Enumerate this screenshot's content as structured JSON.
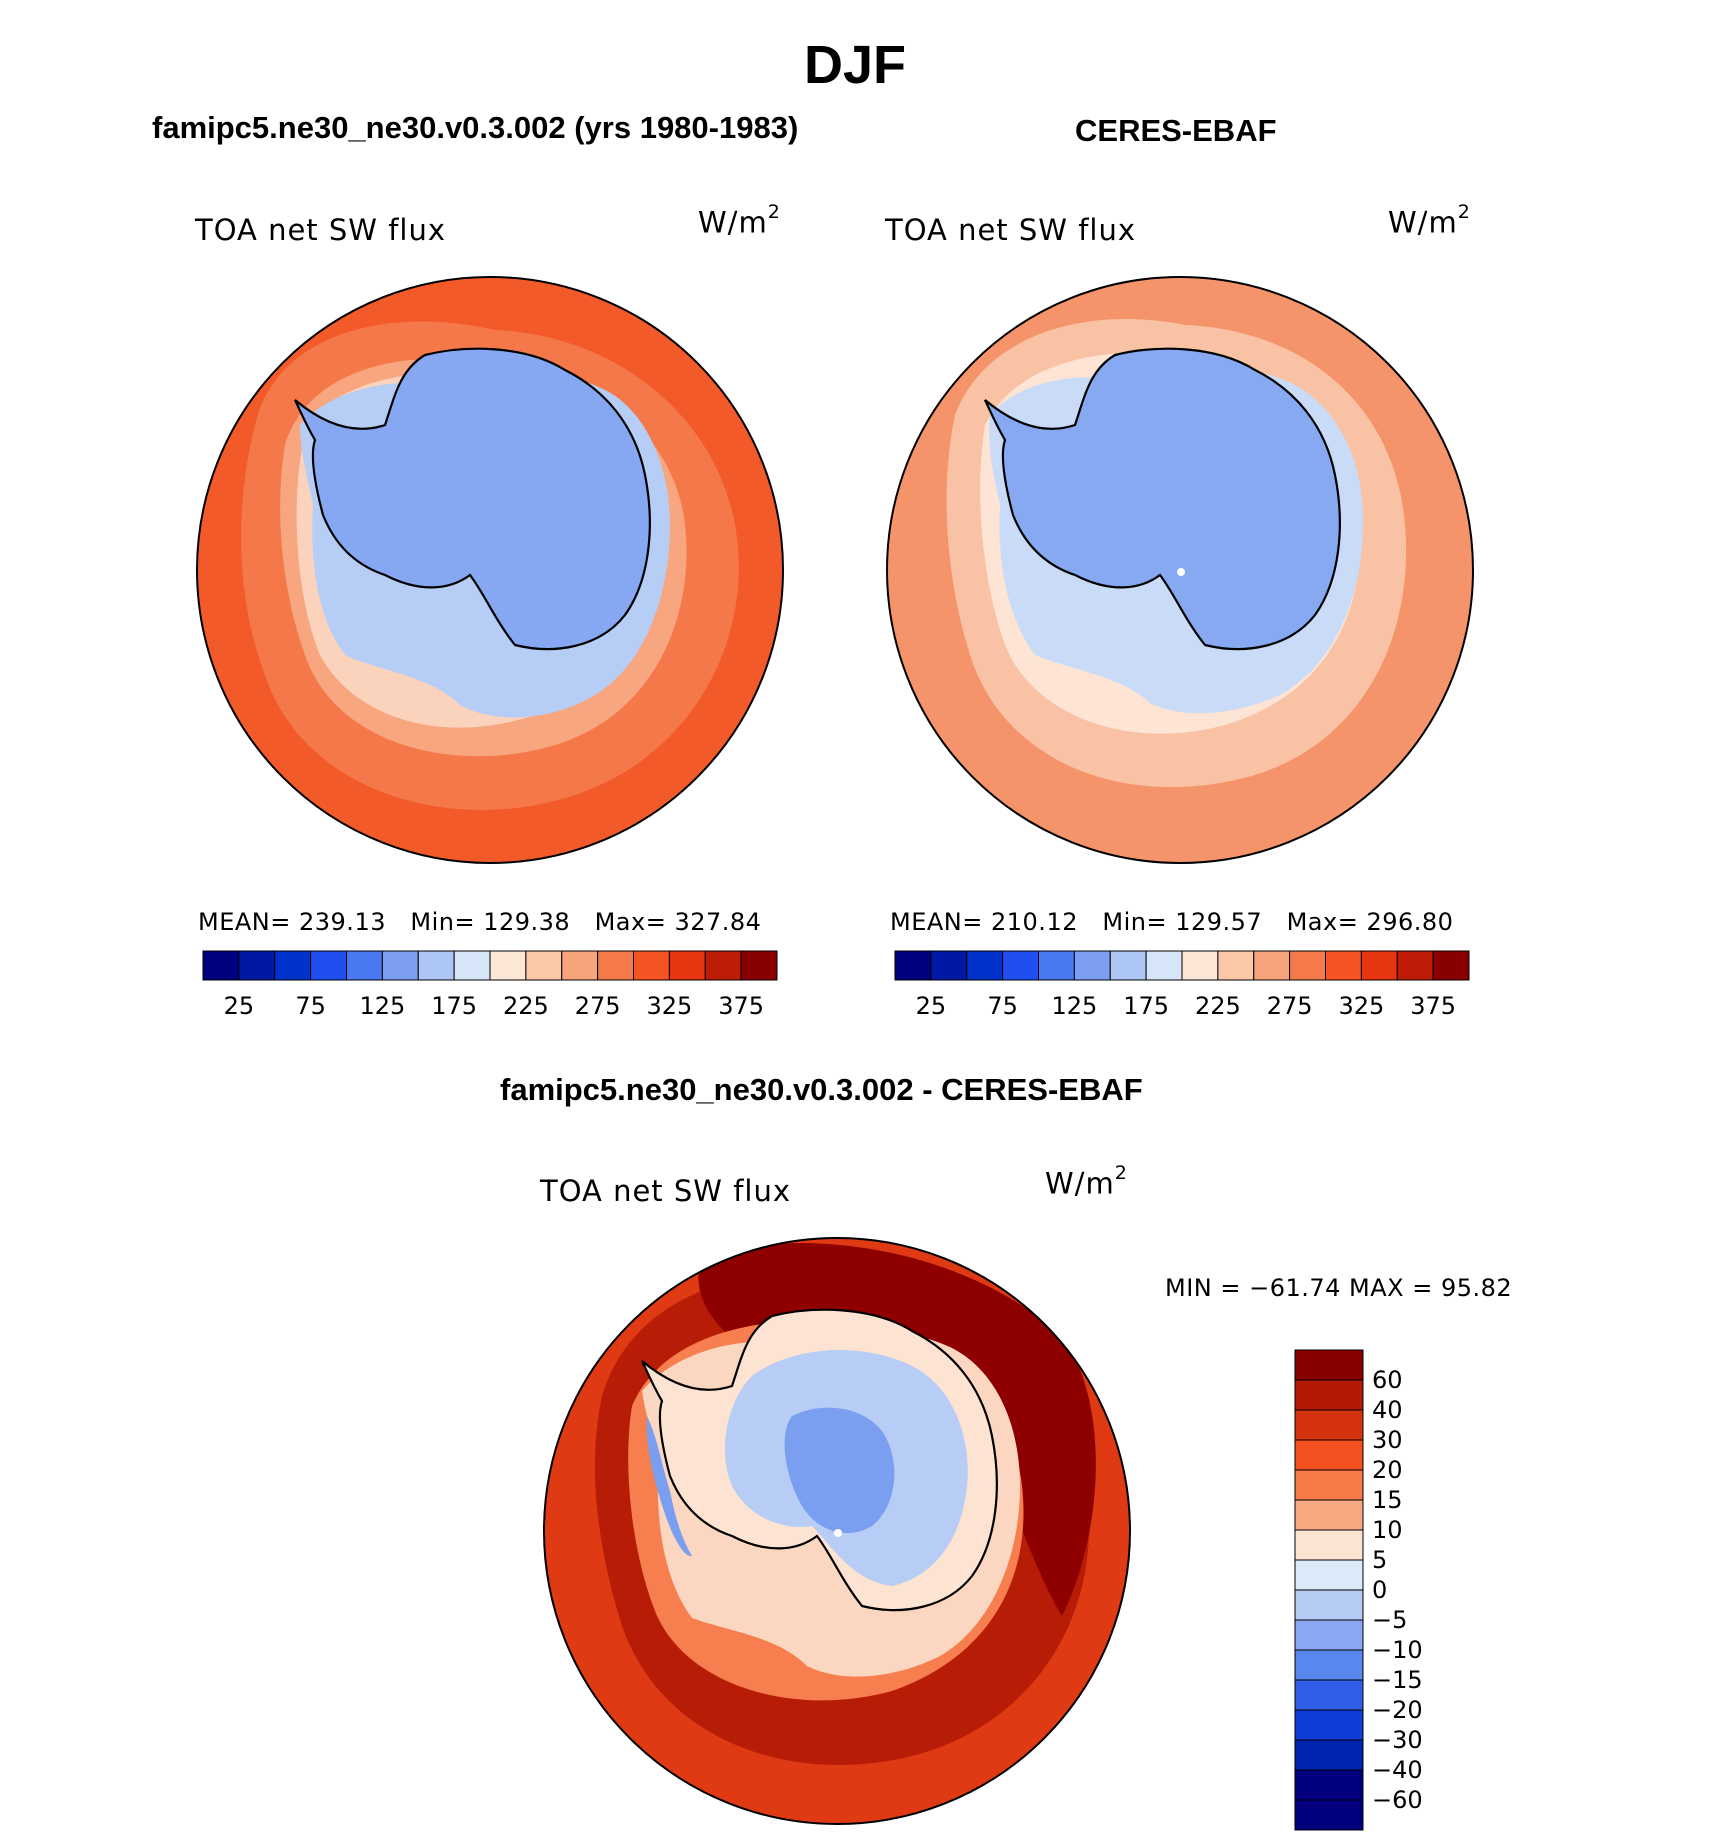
{
  "figure": {
    "title": "DJF"
  },
  "panels": [
    {
      "title": "famipc5.ne30_ne30.v0.3.002 (yrs 1980-1983)",
      "variable": "TOA net SW flux",
      "units_base": "W/m",
      "units_exp": "2",
      "stats": {
        "mean_label": "MEAN=",
        "mean": "239.13",
        "min_label": "Min=",
        "min": "129.38",
        "max_label": "Max=",
        "max": "327.84"
      }
    },
    {
      "title": "CERES-EBAF",
      "variable": "TOA net SW flux",
      "units_base": "W/m",
      "units_exp": "2",
      "stats": {
        "mean_label": "MEAN=",
        "mean": "210.12",
        "min_label": "Min=",
        "min": "129.57",
        "max_label": "Max=",
        "max": "296.80"
      }
    },
    {
      "title": "famipc5.ne30_ne30.v0.3.002 - CERES-EBAF",
      "variable": "TOA net SW flux",
      "units_base": "W/m",
      "units_exp": "2",
      "minmax_text": "MIN = −61.74 MAX =   95.82"
    }
  ],
  "colorbars": {
    "absolute": {
      "colors": [
        "#00007f",
        "#0019a5",
        "#0033cc",
        "#1f4ff0",
        "#4a78f0",
        "#7d9ff2",
        "#aec6f5",
        "#d6e6f8",
        "#fde7d6",
        "#fbc8a8",
        "#f6a47c",
        "#f47a4c",
        "#f75424",
        "#e73512",
        "#bf1c08",
        "#8a0000"
      ],
      "labels": [
        "25",
        "75",
        "125",
        "175",
        "225",
        "275",
        "325",
        "375"
      ]
    },
    "difference": {
      "colors": [
        "#8a0000",
        "#b21a06",
        "#d63210",
        "#f5501f",
        "#f67b48",
        "#f7a982",
        "#fce4d3",
        "#dbe9f8",
        "#b4cbf4",
        "#89a8f1",
        "#5a86ef",
        "#2f5fe9",
        "#0f3dd8",
        "#0022b0",
        "#00007f"
      ],
      "labels": [
        "60",
        "40",
        "30",
        "20",
        "15",
        "10",
        "5",
        "0",
        "−5",
        "−10",
        "−15",
        "−20",
        "−30",
        "−40",
        "−60"
      ]
    }
  },
  "map_colors": {
    "model_ocean_outer": "#f35a2a",
    "model_ocean_mid": "#f4784a",
    "model_ocean_inner": "#f7a680",
    "model_seaice": "#fbd3bd",
    "model_ice_edge": "#b6cdf5",
    "model_land": "#86a8f2",
    "obs_ocean_outer": "#f5936a",
    "obs_ocean_mid": "#f9c2a4",
    "obs_ocean_inner": "#fde4d4",
    "obs_ice_edge": "#c9dbf6",
    "obs_land": "#87a9f2",
    "diff_outer": "#e03a14",
    "diff_mid": "#b61c06",
    "diff_pacific": "#8e0000",
    "diff_inner": "#f77e4e",
    "diff_edge": "#fbd7c2",
    "diff_land_light": "#fde3d2",
    "diff_land_blue": "#b7cdf5",
    "diff_land_core": "#7b9ff0",
    "coast": "#000000"
  }
}
